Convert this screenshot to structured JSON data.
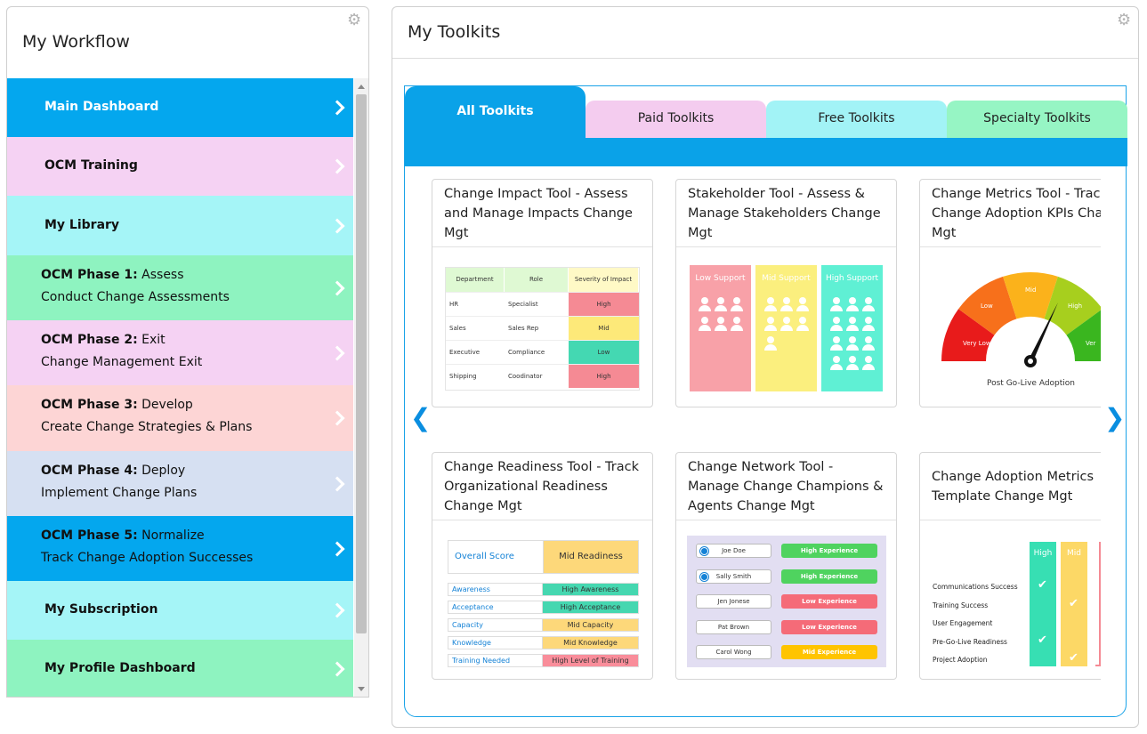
{
  "workflow": {
    "title": "My Workflow",
    "items": [
      {
        "label": "Main Dashboard",
        "color": "#04a7ee"
      },
      {
        "label": "OCM Training",
        "color": "#f5d2f3"
      },
      {
        "label": "My Library",
        "color": "#a5f5f7"
      },
      {
        "title_bold": "OCM Phase 1:",
        "title_rest": "Assess",
        "subtitle": "Conduct Change Assessments",
        "color": "#8ef3c0"
      },
      {
        "title_bold": "OCM Phase 2:",
        "title_rest": "Exit",
        "subtitle": "Change Management Exit",
        "color": "#f5d2f3"
      },
      {
        "title_bold": "OCM Phase 3:",
        "title_rest": "Develop",
        "subtitle": "Create Change Strategies & Plans",
        "color": "#fdd5d5"
      },
      {
        "title_bold": "OCM Phase 4:",
        "title_rest": "Deploy",
        "subtitle": "Implement Change Plans",
        "color": "#d6e0f2"
      },
      {
        "title_bold": "OCM Phase 5:",
        "title_rest": "Normalize",
        "subtitle": "Track Change Adoption Successes",
        "color": "#04a7ee"
      },
      {
        "label": "My Subscription",
        "color": "#a5f5f7"
      },
      {
        "label": "My Profile Dashboard",
        "color": "#8ef3c0"
      }
    ]
  },
  "toolkits": {
    "title": "My Toolkits",
    "tabs": [
      {
        "label": "All Toolkits",
        "color": "#0aa2e8"
      },
      {
        "label": "Paid Toolkits",
        "color": "#f4ccef"
      },
      {
        "label": "Free Toolkits",
        "color": "#a2f3f6"
      },
      {
        "label": "Specialty Toolkits",
        "color": "#96f5c4"
      }
    ],
    "cards": [
      {
        "title": "Change Impact Tool - Assess and Manage Impacts Change Mgt"
      },
      {
        "title": "Stakeholder Tool - Assess & Manage Stakeholders Change Mgt"
      },
      {
        "title": "Change Metrics Tool - Track Change Adoption KPIs Change Mgt"
      },
      {
        "title": "Change Readiness Tool - Track Organizational Readiness Change Mgt"
      },
      {
        "title": "Change Network Tool - Manage Change Champions & Agents Change Mgt"
      },
      {
        "title": "Change Adoption Metrics Template Change Mgt"
      }
    ],
    "impact_table": {
      "headers": [
        "Department",
        "Role",
        "Severity of Impact"
      ],
      "rows": [
        {
          "dept": "HR",
          "role": "Specialist",
          "severity": "High",
          "color": "#f58a94"
        },
        {
          "dept": "Sales",
          "role": "Sales Rep",
          "severity": "Mid",
          "color": "#fde979"
        },
        {
          "dept": "Executive",
          "role": "Compliance",
          "severity": "Low",
          "color": "#44d8b2"
        },
        {
          "dept": "Shipping",
          "role": "Coodinator",
          "severity": "High",
          "color": "#f58a94"
        }
      ]
    },
    "support": [
      {
        "label": "Low Support",
        "color": "#f8a1a8",
        "count": 6
      },
      {
        "label": "Mid Support",
        "color": "#fbef7e",
        "count": 7
      },
      {
        "label": "High Support",
        "color": "#5ff0d4",
        "count": 12
      }
    ],
    "gauge": {
      "caption": "Post Go-Live Adoption",
      "labels": [
        "Very Low",
        "Low",
        "Mid",
        "High",
        "Very High"
      ],
      "visible_labels": [
        "Very Low",
        "Low",
        "Mid",
        "High",
        "Ver"
      ]
    },
    "readiness": {
      "score_label": "Overall Score",
      "score_value": "Mid Readiness",
      "rows": [
        {
          "label": "Awareness",
          "value": "High Awareness",
          "color": "#45d7b0"
        },
        {
          "label": "Acceptance",
          "value": "High Acceptance",
          "color": "#45d7b0"
        },
        {
          "label": "Capacity",
          "value": "Mid Capacity",
          "color": "#fdd87a"
        },
        {
          "label": "Knowledge",
          "value": "Mid Knowledge",
          "color": "#fdd87a"
        },
        {
          "label": "Training Needed",
          "value": "High Level of Training",
          "color": "#f98d9a"
        }
      ]
    },
    "network": [
      {
        "name": "Joe Doe",
        "badge": "High Experience",
        "color": "#4fd35f",
        "checked": true
      },
      {
        "name": "Sally Smith",
        "badge": "High Experience",
        "color": "#4fd35f",
        "checked": true
      },
      {
        "name": "Jen Jonese",
        "badge": "Low Experience",
        "color": "#f56b78",
        "checked": false
      },
      {
        "name": "Pat Brown",
        "badge": "Low Experience",
        "color": "#f56b78",
        "checked": false
      },
      {
        "name": "Carol Wong",
        "badge": "Mid Experience",
        "color": "#ffc400",
        "checked": false
      }
    ],
    "adoption": {
      "columns": [
        {
          "label": "High",
          "color": "#37dfb3"
        },
        {
          "label": "Mid",
          "color": "#fcd866"
        }
      ],
      "rows": [
        {
          "label": "Communications Success",
          "high": true,
          "mid": false
        },
        {
          "label": "Training Success",
          "high": false,
          "mid": true
        },
        {
          "label": "User Engagement",
          "high": false,
          "mid": false
        },
        {
          "label": "Pre-Go-Live Readiness",
          "high": true,
          "mid": false
        },
        {
          "label": "Project Adoption",
          "high": false,
          "mid": true
        }
      ]
    }
  }
}
